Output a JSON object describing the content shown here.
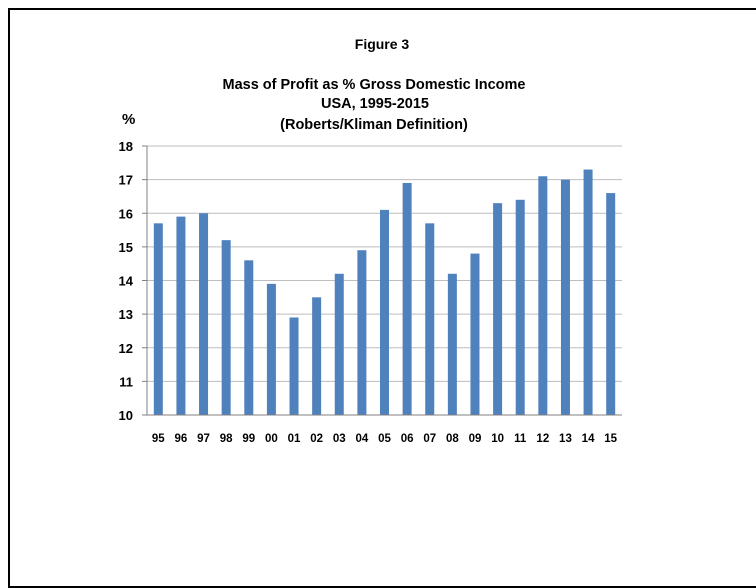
{
  "chart_data": {
    "type": "bar",
    "figure_label": "Figure 3",
    "title_lines": [
      "Mass of Profit as % Gross Domestic Income",
      "USA, 1995-2015",
      "(Roberts/Kliman Definition)"
    ],
    "ylabel": "%",
    "xlabel": "",
    "ylim": [
      10,
      18
    ],
    "yticks": [
      10,
      11,
      12,
      13,
      14,
      15,
      16,
      17,
      18
    ],
    "grid": true,
    "legend": "none",
    "bar_color": "#4f81bd",
    "categories": [
      "95",
      "96",
      "97",
      "98",
      "99",
      "00",
      "01",
      "02",
      "03",
      "04",
      "05",
      "06",
      "07",
      "08",
      "09",
      "10",
      "11",
      "12",
      "13",
      "14",
      "15"
    ],
    "values": [
      15.7,
      15.9,
      16.0,
      15.2,
      14.6,
      13.9,
      12.9,
      13.5,
      14.2,
      14.9,
      16.1,
      16.9,
      15.7,
      14.2,
      14.8,
      16.3,
      16.4,
      17.1,
      17.0,
      17.3,
      16.6
    ]
  }
}
